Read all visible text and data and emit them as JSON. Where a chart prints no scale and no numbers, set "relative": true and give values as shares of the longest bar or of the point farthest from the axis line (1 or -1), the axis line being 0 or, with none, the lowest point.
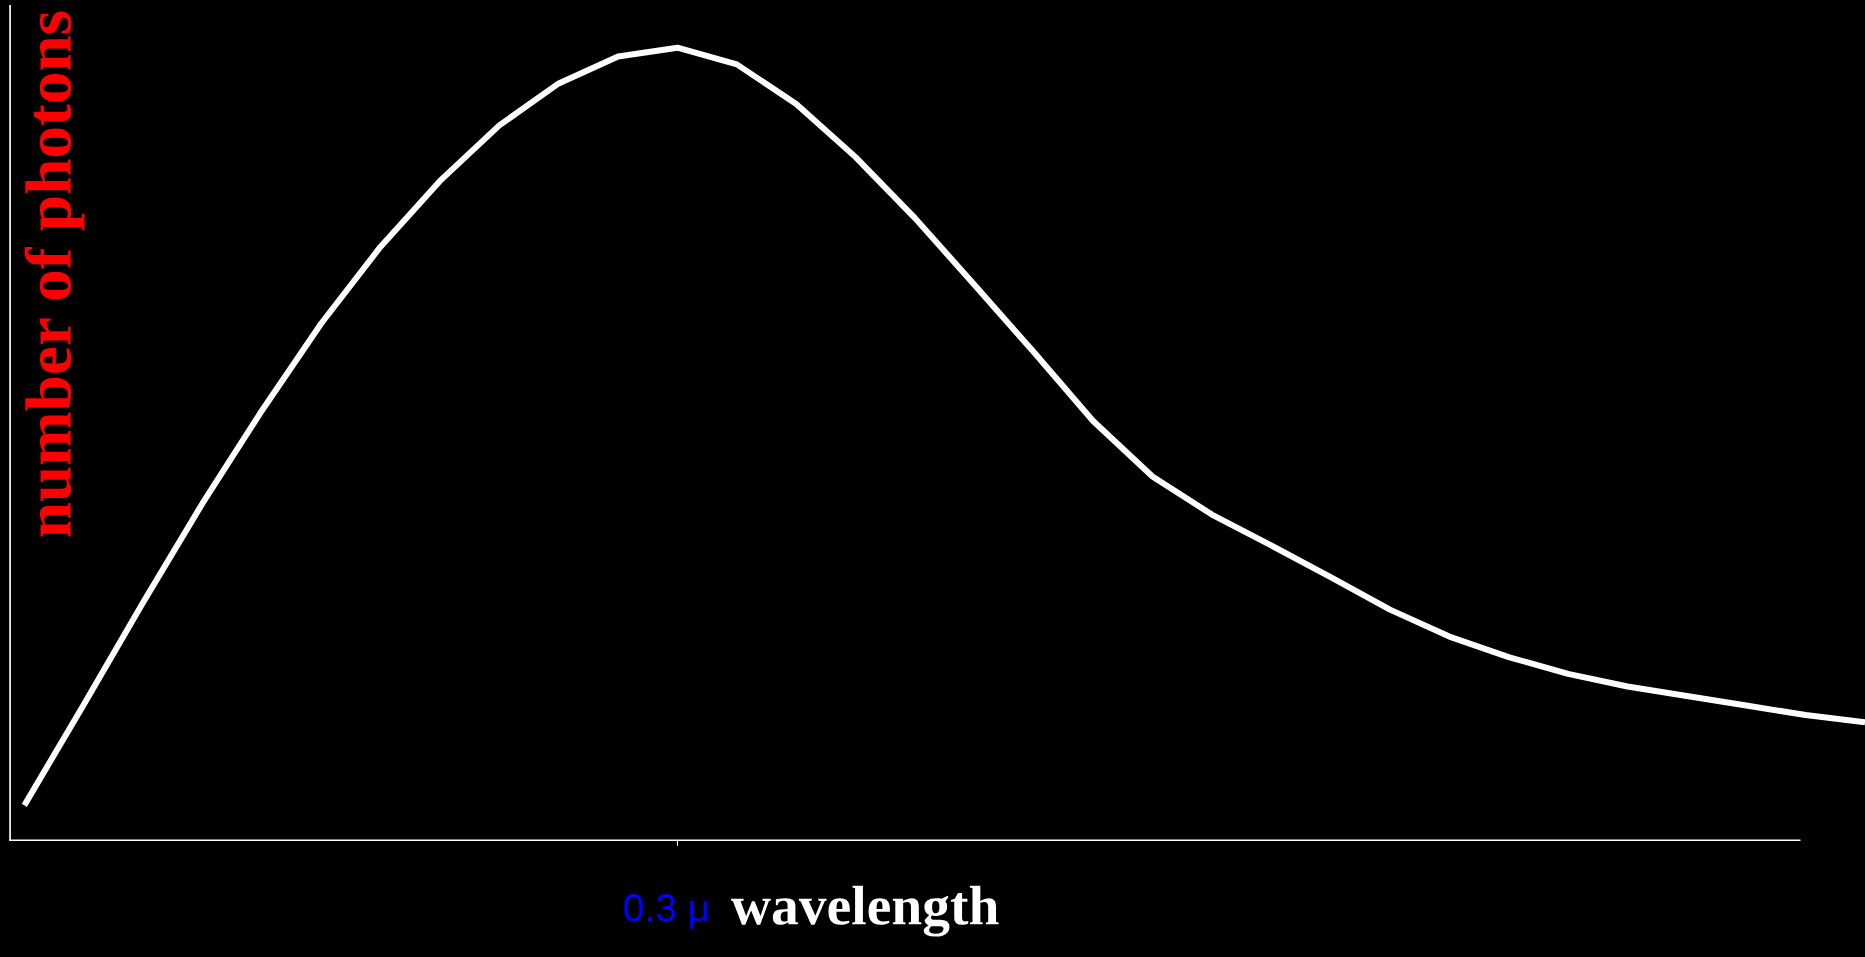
{
  "chart_data": {
    "type": "line",
    "relative": true,
    "xlabel": "wavelength",
    "ylabel": "number of photons",
    "annotations": [
      "0.3 μ"
    ],
    "categories": [
      null,
      null,
      null,
      null,
      null,
      null,
      null,
      null,
      null,
      null,
      null,
      null,
      null,
      null,
      null,
      null,
      null,
      null,
      null,
      null,
      null,
      null,
      null,
      null,
      null,
      null,
      null,
      null,
      null,
      null,
      null,
      null
    ],
    "series": [
      {
        "color": "#ffffff",
        "values": [
          0.044,
          0.171,
          0.3,
          0.425,
          0.542,
          0.652,
          0.749,
          0.832,
          0.902,
          0.955,
          0.989,
          1.0,
          0.979,
          0.929,
          0.862,
          0.785,
          0.701,
          0.616,
          0.529,
          0.459,
          0.411,
          0.372,
          0.332,
          0.291,
          0.257,
          0.231,
          0.21,
          0.194,
          0.182,
          0.17,
          0.158,
          0.149
        ]
      }
    ],
    "grid": false,
    "legend": false,
    "marker": "none",
    "line_style": "solid"
  }
}
